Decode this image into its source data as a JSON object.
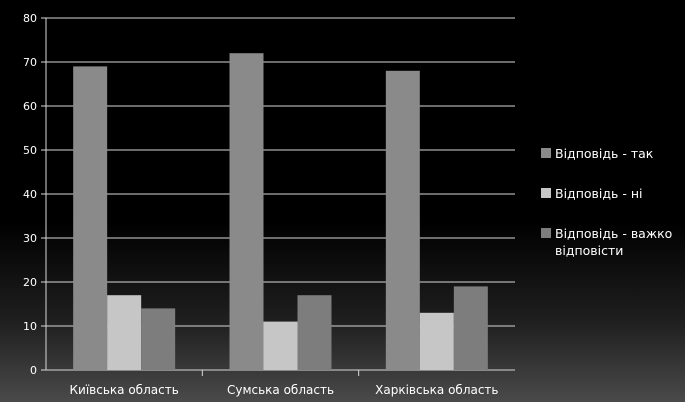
{
  "chart_data": {
    "type": "bar",
    "categories": [
      "Київська область",
      "Сумська область",
      "Харківська область"
    ],
    "series": [
      {
        "name": "Відповідь - так",
        "values": [
          69,
          72,
          68
        ],
        "color": "#8a8a8a"
      },
      {
        "name": "Відповідь - ні",
        "values": [
          17,
          11,
          13
        ],
        "color": "#c6c6c6"
      },
      {
        "name": "Відповідь - важко відповісти",
        "values": [
          14,
          17,
          19
        ],
        "color": "#7d7d7d"
      }
    ],
    "legend_lines": [
      [
        "Відповідь - так"
      ],
      [
        "Відповідь - ні"
      ],
      [
        "Відповідь - важко",
        "відповісти"
      ]
    ],
    "ylim": [
      0,
      80
    ],
    "yticks": [
      0,
      10,
      20,
      30,
      40,
      50,
      60,
      70,
      80
    ],
    "grid": true,
    "legend_position": "right",
    "title": "",
    "xlabel": "",
    "ylabel": ""
  }
}
